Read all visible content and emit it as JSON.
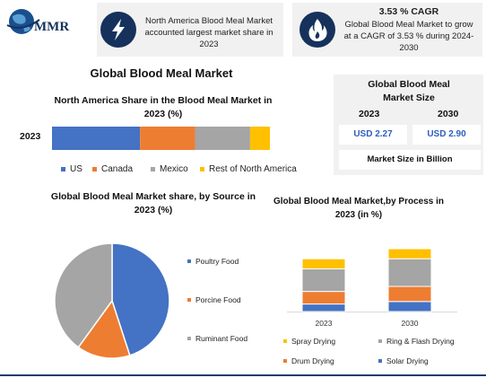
{
  "brand": {
    "logo_text": "MMR"
  },
  "fact1": {
    "text": "North America Blood Meal Market accounted largest market share in 2023"
  },
  "fact2": {
    "heading": "3.53 % CAGR",
    "text": "Global Blood Meal Market to grow at a CAGR of 3.53 % during 2024-2030"
  },
  "main_title": "Global Blood Meal Market",
  "market_size": {
    "title": "Global Blood Meal Market Size",
    "year1": "2023",
    "year2": "2030",
    "value1": "USD 2.27",
    "value2": "USD 2.90",
    "footer": "Market Size in Billion"
  },
  "colors": {
    "blue": "#4472c4",
    "orange": "#ed7d31",
    "gray": "#a5a5a5",
    "yellow": "#ffc000",
    "navy": "#16325c"
  },
  "chart_data": [
    {
      "type": "bar",
      "orientation": "horizontal-stacked",
      "title": "North America Share in the Blood Meal Market in 2023 (%)",
      "categories": [
        "2023"
      ],
      "series": [
        {
          "name": "US",
          "values": [
            40
          ]
        },
        {
          "name": "Canada",
          "values": [
            25
          ]
        },
        {
          "name": "Mexico",
          "values": [
            25
          ]
        },
        {
          "name": "Rest of North America",
          "values": [
            9
          ]
        }
      ],
      "legend_position": "bottom"
    },
    {
      "type": "pie",
      "title": "Global Blood Meal Market share, by Source in 2023 (%)",
      "labels": [
        "Poultry Food",
        "Porcine Food",
        "Ruminant Food"
      ],
      "values": [
        45,
        15,
        40
      ],
      "legend_position": "right"
    },
    {
      "type": "bar",
      "orientation": "vertical-stacked",
      "title": "Global Blood Meal Market,by Process in 2023 (in %)",
      "categories": [
        "2023",
        "2030"
      ],
      "series": [
        {
          "name": "Solar Drying",
          "values": [
            0.3,
            0.4
          ]
        },
        {
          "name": "Drum Drying",
          "values": [
            0.5,
            0.6
          ]
        },
        {
          "name": "Ring & Flash Drying",
          "values": [
            0.9,
            1.1
          ]
        },
        {
          "name": "Spray Drying",
          "values": [
            0.4,
            0.4
          ]
        }
      ],
      "legend_position": "bottom",
      "legend_order": [
        "Spray Drying",
        "Ring & Flash Drying",
        "Drum Drying",
        "Solar Drying"
      ]
    }
  ]
}
